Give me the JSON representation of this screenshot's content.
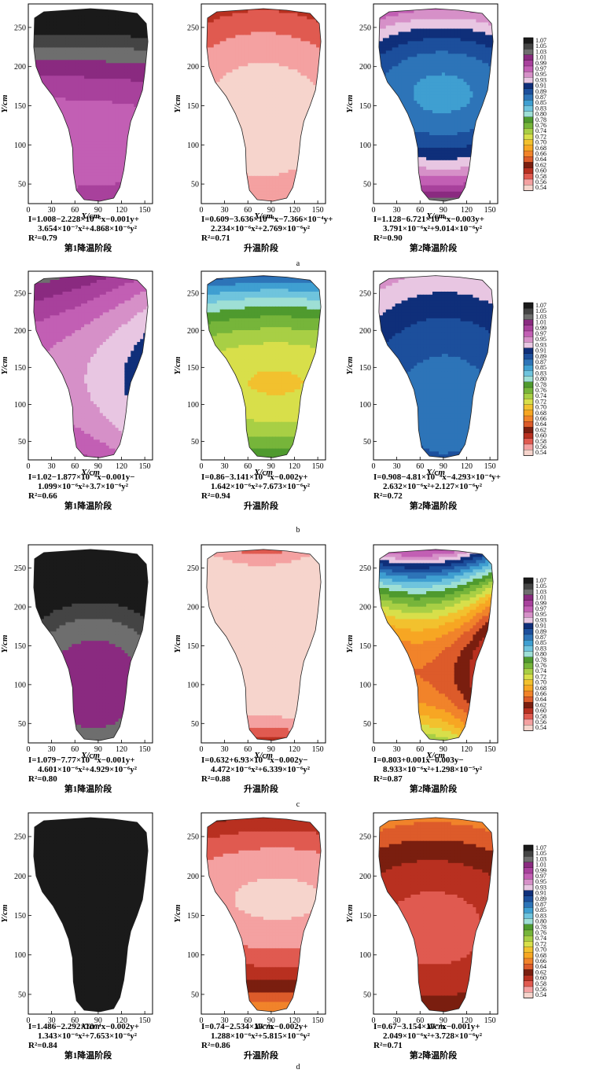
{
  "axis_labels": {
    "x": "X/cm",
    "y": "Y/cm"
  },
  "x_ticks": [
    "0",
    "30",
    "60",
    "90",
    "120",
    "150"
  ],
  "y_ticks": [
    "50",
    "100",
    "150",
    "200",
    "250"
  ],
  "colorbar_ticks": [
    "1.07",
    "1.05",
    "1.03",
    "1.01",
    "0.99",
    "0.97",
    "0.95",
    "0.93",
    "0.91",
    "0.89",
    "0.87",
    "0.85",
    "0.83",
    "0.80",
    "0.78",
    "0.76",
    "0.74",
    "0.72",
    "0.70",
    "0.68",
    "0.66",
    "0.64",
    "0.62",
    "0.60",
    "0.58",
    "0.56",
    "0.54"
  ],
  "colorbar_colors": [
    "#1a1a1a",
    "#444444",
    "#6e6e6e",
    "#8a2a80",
    "#a8419c",
    "#c25fb4",
    "#d690c8",
    "#e8c6e2",
    "#0f2f7a",
    "#1c4f9c",
    "#2d74b8",
    "#3f9fd1",
    "#6fc4dd",
    "#9edfd5",
    "#4f9a2e",
    "#76b53a",
    "#a8cf45",
    "#d8df4a",
    "#f2c12e",
    "#f7a623",
    "#f1832a",
    "#dd5b2a",
    "#7a1e0f",
    "#b83020",
    "#e05a50",
    "#f4a1a1",
    "#f6d4cc"
  ],
  "rows": [
    {
      "label": "a",
      "panels": [
        {
          "eq_line1": "I=1.008−2.228×10⁻⁵x−0.001y+",
          "eq_line2": "3.654×10⁻⁷x²+4.868×10⁻⁶y²",
          "r2": "R²=0.79",
          "stage": "第1降温阶段"
        },
        {
          "eq_line1": "I=0.609−3.636×10⁻⁴x−7.366×10⁻⁴y+",
          "eq_line2": "2.234×10⁻⁶x²+2.769×10⁻⁶y²",
          "r2": "R²=0.71",
          "stage": "升温阶段"
        },
        {
          "eq_line1": "I=1.128−6.721×10⁻⁴x−0.003y+",
          "eq_line2": "3.791×10⁻⁶x²+9.014×10⁻⁶y²",
          "r2": "R²=0.90",
          "stage": "第2降温阶段"
        }
      ]
    },
    {
      "label": "b",
      "panels": [
        {
          "eq_line1": "I=1.02−1.877×10⁻⁴x−0.001y−",
          "eq_line2": "1.099×10⁻⁶x²+3.7×10⁻⁶y²",
          "r2": "R²=0.66",
          "stage": "第1降温阶段"
        },
        {
          "eq_line1": "I=0.86−3.141×10⁻⁴x−0.002y+",
          "eq_line2": "1.642×10⁻⁶x²+7.673×10⁻⁶y²",
          "r2": "R²=0.94",
          "stage": "升温阶段"
        },
        {
          "eq_line1": "I=0.908−4.81×10⁻⁴x−4.293×10⁻⁴y+",
          "eq_line2": "2.632×10⁻⁶x²+2.127×10⁻⁶y²",
          "r2": "R²=0.72",
          "stage": "第2降温阶段"
        }
      ]
    },
    {
      "label": "c",
      "panels": [
        {
          "eq_line1": "I=1.079−7.77×10⁻⁴x−0.001y+",
          "eq_line2": "4.601×10⁻⁶x²+4.929×10⁻⁶y²",
          "r2": "R²=0.80",
          "stage": "第1降温阶段"
        },
        {
          "eq_line1": "I=0.632+6.93×10⁻⁴x−0.002y−",
          "eq_line2": "4.472×10⁻⁶x²+6.339×10⁻⁶y²",
          "r2": "R²=0.88",
          "stage": "升温阶段"
        },
        {
          "eq_line1": "I=0.803+0.001x−0.003y−",
          "eq_line2": "8.933×10⁻⁶x²+1.298×10⁻⁵y²",
          "r2": "R²=0.87",
          "stage": "第2降温阶段"
        }
      ]
    },
    {
      "label": "d",
      "panels": [
        {
          "eq_line1": "I=1.486−2.292×10⁻⁴x−0.002y+",
          "eq_line2": "1.343×10⁻⁶x²+7.653×10⁻⁶y²",
          "r2": "R²=0.84",
          "stage": "第1降温阶段"
        },
        {
          "eq_line1": "I=0.74−2.534×10⁻⁴x−0.002y+",
          "eq_line2": "1.288×10⁻⁶x²+5.815×10⁻⁶y²",
          "r2": "R²=0.86",
          "stage": "升温阶段"
        },
        {
          "eq_line1": "I=0.67−3.154×10⁻⁴x−0.001y+",
          "eq_line2": "2.049×10⁻⁶x²+3.728×10⁻⁶y²",
          "r2": "R²=0.71",
          "stage": "第2降温阶段"
        }
      ]
    }
  ],
  "chart_data": {
    "type": "heatmap",
    "xlim": [
      0,
      160
    ],
    "ylim": [
      25,
      280
    ],
    "x_ticks": [
      0,
      30,
      60,
      90,
      120,
      150
    ],
    "y_ticks": [
      50,
      100,
      150,
      200,
      250
    ],
    "colorbar_range": [
      0.54,
      1.07
    ],
    "model": "I = c0 + cx·x + cy·y + cxx·x² + cyy·y²",
    "panels": [
      {
        "row": "a",
        "stage": "第1降温阶段",
        "coef": [
          1.008,
          -2.228e-05,
          -0.001,
          3.654e-07,
          4.868e-06
        ],
        "r2": 0.79
      },
      {
        "row": "a",
        "stage": "升温阶段",
        "coef": [
          0.609,
          -0.0003636,
          -0.0007366,
          2.234e-06,
          2.769e-06
        ],
        "r2": 0.71
      },
      {
        "row": "a",
        "stage": "第2降温阶段",
        "coef": [
          1.128,
          -0.0006721,
          -0.003,
          3.791e-06,
          9.014e-06
        ],
        "r2": 0.9
      },
      {
        "row": "b",
        "stage": "第1降温阶段",
        "coef": [
          1.02,
          -0.0001877,
          -0.001,
          -1.099e-06,
          3.7e-06
        ],
        "r2": 0.66
      },
      {
        "row": "b",
        "stage": "升温阶段",
        "coef": [
          0.86,
          -0.0003141,
          -0.002,
          1.642e-06,
          7.673e-06
        ],
        "r2": 0.94
      },
      {
        "row": "b",
        "stage": "第2降温阶段",
        "coef": [
          0.908,
          -0.000481,
          -0.0004293,
          2.632e-06,
          2.127e-06
        ],
        "r2": 0.72
      },
      {
        "row": "c",
        "stage": "第1降温阶段",
        "coef": [
          1.079,
          -0.000777,
          -0.001,
          4.601e-06,
          4.929e-06
        ],
        "r2": 0.8
      },
      {
        "row": "c",
        "stage": "升温阶段",
        "coef": [
          0.632,
          0.000693,
          -0.002,
          -4.472e-06,
          6.339e-06
        ],
        "r2": 0.88
      },
      {
        "row": "c",
        "stage": "第2降温阶段",
        "coef": [
          0.803,
          0.001,
          -0.003,
          -8.933e-06,
          1.298e-05
        ],
        "r2": 0.87
      },
      {
        "row": "d",
        "stage": "第1降温阶段",
        "coef": [
          1.486,
          -0.0002292,
          -0.002,
          1.343e-06,
          7.653e-06
        ],
        "r2": 0.84
      },
      {
        "row": "d",
        "stage": "升温阶段",
        "coef": [
          0.74,
          -0.0002534,
          -0.002,
          1.288e-06,
          5.815e-06
        ],
        "r2": 0.86
      },
      {
        "row": "d",
        "stage": "第2降温阶段",
        "coef": [
          0.67,
          -0.0003154,
          -0.001,
          2.049e-06,
          3.728e-06
        ],
        "r2": 0.71
      }
    ]
  }
}
